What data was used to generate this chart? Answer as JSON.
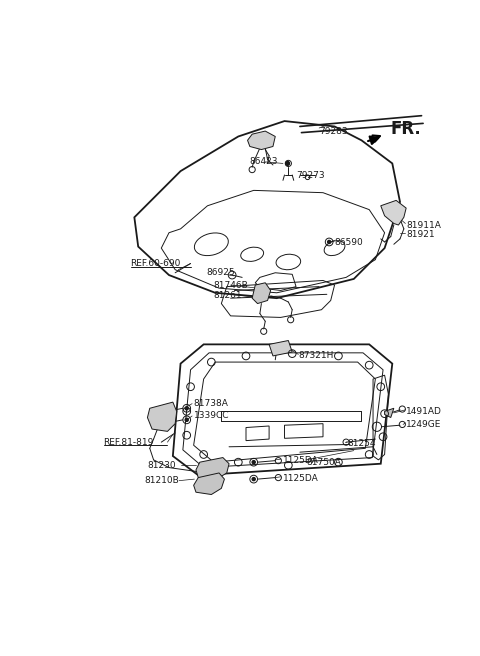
{
  "bg": "#ffffff",
  "lc": "#1a1a1a",
  "fs": 6.5,
  "fs_fr": 11,
  "top_labels": [
    [
      "79283",
      330,
      68
    ],
    [
      "86423",
      268,
      108
    ],
    [
      "79273",
      303,
      126
    ],
    [
      "81911A",
      398,
      188
    ],
    [
      "81921",
      398,
      200
    ],
    [
      "86590",
      355,
      208
    ],
    [
      "86925",
      188,
      248
    ],
    [
      "81746B",
      192,
      268
    ],
    [
      "81261",
      192,
      282
    ]
  ],
  "bot_labels": [
    [
      "87321H",
      305,
      360
    ],
    [
      "81738A",
      175,
      422
    ],
    [
      "1339CC",
      175,
      436
    ],
    [
      "81230",
      110,
      502
    ],
    [
      "81210B",
      110,
      520
    ],
    [
      "1125DA",
      285,
      496
    ],
    [
      "1125DA",
      285,
      518
    ],
    [
      "1491AD",
      390,
      432
    ],
    [
      "1249GE",
      390,
      448
    ],
    [
      "81254",
      368,
      472
    ],
    [
      "81750A",
      320,
      498
    ]
  ]
}
